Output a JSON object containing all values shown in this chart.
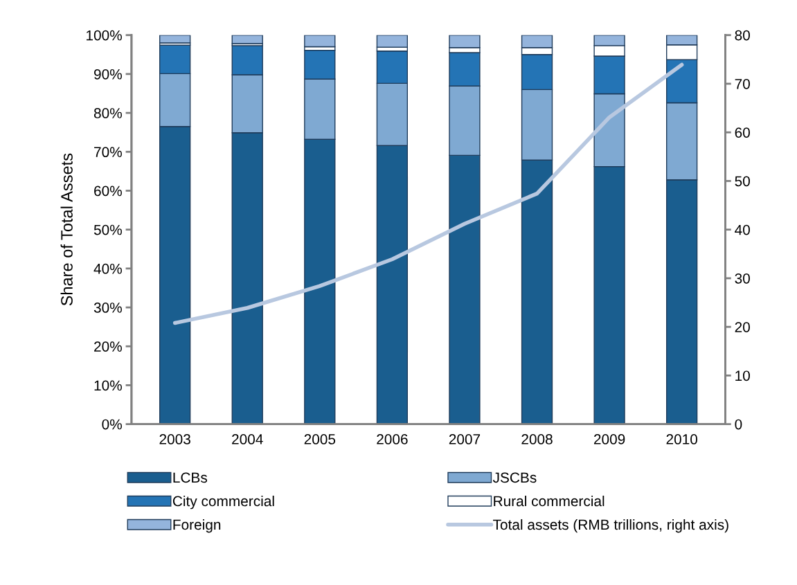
{
  "chart_data": {
    "type": "bar",
    "stacked": true,
    "ylabel": "Share of Total Assets",
    "categories": [
      "2003",
      "2004",
      "2005",
      "2006",
      "2007",
      "2008",
      "2009",
      "2010"
    ],
    "series": [
      {
        "name": "LCBs",
        "color": "#1a5e8f",
        "values": [
          76.5,
          74.9,
          73.2,
          71.6,
          69.1,
          67.9,
          66.2,
          62.8
        ]
      },
      {
        "name": "JSCBs",
        "color": "#7fa9d2",
        "values": [
          13.6,
          14.9,
          15.5,
          16.0,
          17.8,
          18.1,
          18.7,
          19.8
        ]
      },
      {
        "name": "City commercial",
        "color": "#2474b5",
        "values": [
          7.3,
          7.5,
          7.4,
          8.3,
          8.6,
          9.0,
          9.7,
          11.1
        ]
      },
      {
        "name": "Rural commercial",
        "color": "#ffffff",
        "values": [
          0.6,
          0.5,
          0.9,
          1.0,
          1.3,
          1.8,
          2.7,
          3.8
        ]
      },
      {
        "name": "Foreign",
        "color": "#94b4dc",
        "values": [
          2.0,
          2.2,
          3.0,
          3.1,
          3.2,
          3.2,
          2.7,
          2.5
        ]
      },
      {
        "name": "Total assets (RMB trillions, right axis)",
        "type": "line",
        "axis": "y2",
        "color": "#b8c8e0",
        "values": [
          20.8,
          23.9,
          28.4,
          33.9,
          41.2,
          47.4,
          63.1,
          73.9
        ]
      }
    ],
    "ylim": [
      0,
      100
    ],
    "yticks": [
      {
        "value": 0,
        "label": "0%"
      },
      {
        "value": 10,
        "label": "10%"
      },
      {
        "value": 20,
        "label": "20%"
      },
      {
        "value": 30,
        "label": "30%"
      },
      {
        "value": 40,
        "label": "40%"
      },
      {
        "value": 50,
        "label": "50%"
      },
      {
        "value": 60,
        "label": "60%"
      },
      {
        "value": 70,
        "label": "70%"
      },
      {
        "value": 80,
        "label": "80%"
      },
      {
        "value": 90,
        "label": "90%"
      },
      {
        "value": 100,
        "label": "100%"
      }
    ],
    "y2lim": [
      0,
      80
    ],
    "y2ticks": [
      0,
      10,
      20,
      30,
      40,
      50,
      60,
      70,
      80
    ],
    "legend": "bottom",
    "grid": false,
    "marker": "none",
    "line_style": "solid"
  }
}
